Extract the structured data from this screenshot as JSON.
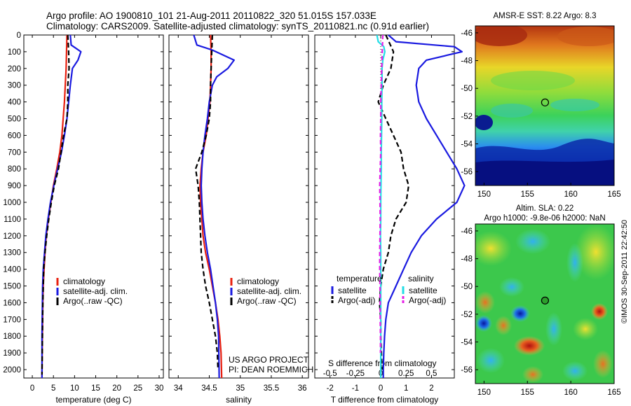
{
  "header": {
    "line1": "Argo profile: AO 1900810_101 21-Aug-2011 20110822_320 51.015S 157.033E",
    "line2": "Climatology: CARS2009. Satellite-adjusted climatology: synTS_20110821.nc (0.91d earlier)"
  },
  "side_label": "©IMOS 30-Sep-2011 22:42:50",
  "colors": {
    "climatology": "#e8200f",
    "satellite": "#1a1ae0",
    "argo": "#000000",
    "salinity_satellite": "#22dde6",
    "salinity_argo": "#e61ee6"
  },
  "chart_data": [
    {
      "type": "line",
      "name_key": "temperature",
      "xlabel": "temperature (deg C)",
      "ylabel": "",
      "xlim": [
        -2,
        31
      ],
      "ylim": [
        2050,
        0
      ],
      "x_ticks": [
        0,
        5,
        10,
        15,
        20,
        25,
        30
      ],
      "y_ticks": [
        0,
        100,
        200,
        300,
        400,
        500,
        600,
        700,
        800,
        900,
        1000,
        1100,
        1200,
        1300,
        1400,
        1500,
        1600,
        1700,
        1800,
        1900,
        2000
      ],
      "legend": [
        "climatology",
        "satellite-adj. clim.",
        "Argo(..raw -QC)"
      ],
      "legend_position": "lower-right",
      "series": [
        {
          "name": "climatology",
          "color_key": "climatology",
          "dash": "",
          "x": [
            8.2,
            8.1,
            8.0,
            7.8,
            7.6,
            7.3,
            7.0,
            6.5,
            5.8,
            5.0,
            4.4,
            3.8,
            3.3,
            3.0,
            2.8,
            2.6,
            2.5,
            2.45,
            2.4,
            2.35,
            2.3
          ],
          "y": [
            0,
            100,
            200,
            300,
            400,
            500,
            600,
            700,
            800,
            900,
            1000,
            1100,
            1200,
            1300,
            1400,
            1500,
            1600,
            1700,
            1800,
            1900,
            2050
          ]
        },
        {
          "name": "satellite-adj. clim.",
          "color_key": "satellite",
          "dash": "",
          "x": [
            9.0,
            9.2,
            11.5,
            10.8,
            9.5,
            9.0,
            8.6,
            8.2,
            7.6,
            6.9,
            6.0,
            5.1,
            4.3,
            3.7,
            3.2,
            2.9,
            2.6,
            2.45,
            2.4,
            2.35,
            2.3,
            2.3
          ],
          "y": [
            0,
            60,
            100,
            150,
            200,
            300,
            400,
            500,
            600,
            700,
            800,
            900,
            1000,
            1100,
            1200,
            1300,
            1400,
            1500,
            1600,
            1700,
            1800,
            2050
          ]
        },
        {
          "name": "Argo(..raw -QC)",
          "color_key": "argo",
          "dash": "7,4",
          "x": [
            8.4,
            8.6,
            8.7,
            8.4,
            8.4,
            8.2,
            7.4,
            6.8,
            6.2,
            5.2,
            4.5,
            3.9,
            3.4,
            3.0,
            2.7,
            2.6,
            2.5,
            2.45,
            2.4,
            2.3
          ],
          "y": [
            0,
            100,
            200,
            300,
            400,
            500,
            600,
            700,
            800,
            900,
            1000,
            1100,
            1200,
            1300,
            1400,
            1500,
            1600,
            1700,
            1800,
            2030
          ]
        }
      ]
    },
    {
      "type": "line",
      "name_key": "salinity",
      "xlabel": "salinity",
      "ylabel": "",
      "xlim": [
        33.85,
        36.1
      ],
      "ylim": [
        2050,
        0
      ],
      "x_ticks": [
        34,
        34.5,
        35,
        35.5,
        36
      ],
      "y_ticks": [
        0,
        100,
        200,
        300,
        400,
        500,
        600,
        700,
        800,
        900,
        1000,
        1100,
        1200,
        1300,
        1400,
        1500,
        1600,
        1700,
        1800,
        1900,
        2000
      ],
      "legend": [
        "climatology",
        "satellite-adj. clim.",
        "Argo(..raw -QC)"
      ],
      "legend_position": "lower-right",
      "annotation": [
        "US ARGO PROJECT",
        "PI: DEAN ROEMMICH"
      ],
      "series": [
        {
          "name": "climatology",
          "color_key": "climatology",
          "dash": "",
          "x": [
            34.52,
            34.53,
            34.53,
            34.52,
            34.51,
            34.48,
            34.45,
            34.4,
            34.37,
            34.35,
            34.36,
            34.38,
            34.4,
            34.44,
            34.5,
            34.55,
            34.6,
            34.64,
            34.67,
            34.69,
            34.7
          ],
          "y": [
            0,
            100,
            200,
            300,
            400,
            500,
            600,
            700,
            800,
            900,
            1000,
            1100,
            1200,
            1300,
            1400,
            1500,
            1600,
            1700,
            1800,
            1900,
            2050
          ]
        },
        {
          "name": "satellite-adj. clim.",
          "color_key": "satellite",
          "dash": "",
          "x": [
            34.25,
            34.3,
            34.55,
            34.9,
            34.8,
            34.62,
            34.55,
            34.5,
            34.47,
            34.43,
            34.4,
            34.38,
            34.37,
            34.38,
            34.4,
            34.43,
            34.47,
            34.52,
            34.56,
            34.6,
            34.63,
            34.65,
            34.66
          ],
          "y": [
            0,
            60,
            90,
            150,
            200,
            250,
            300,
            400,
            500,
            600,
            700,
            800,
            900,
            1000,
            1100,
            1200,
            1300,
            1400,
            1500,
            1600,
            1700,
            1800,
            2050
          ]
        },
        {
          "name": "Argo(..raw -QC)",
          "color_key": "argo",
          "dash": "7,4",
          "x": [
            34.55,
            34.54,
            34.53,
            34.52,
            34.52,
            34.5,
            34.45,
            34.38,
            34.28,
            34.32,
            34.34,
            34.35,
            34.36,
            34.37,
            34.4,
            34.44,
            34.5,
            34.55,
            34.6,
            34.63,
            34.64
          ],
          "y": [
            0,
            100,
            200,
            300,
            400,
            500,
            600,
            700,
            800,
            900,
            1000,
            1100,
            1200,
            1300,
            1400,
            1500,
            1600,
            1700,
            1800,
            1900,
            2000
          ]
        }
      ]
    },
    {
      "type": "line",
      "name_key": "difference",
      "xlabel": "T difference from climatology",
      "ylabel": "",
      "xlim": [
        -2.6,
        2.9
      ],
      "ylim": [
        2050,
        0
      ],
      "x_ticks": [
        -2,
        -1,
        0,
        1,
        2
      ],
      "secondary_x_label": "S difference from climatology",
      "secondary_x_ticks": [
        "-0.5",
        "-0.25",
        "0",
        "0.25",
        "0.5"
      ],
      "secondary_x_values": [
        -0.5,
        -0.25,
        0,
        0.25,
        0.5
      ],
      "secondary_scale": 4,
      "y_ticks": [
        0,
        100,
        200,
        300,
        400,
        500,
        600,
        700,
        800,
        900,
        1000,
        1100,
        1200,
        1300,
        1400,
        1500,
        1600,
        1700,
        1800,
        1900,
        2000
      ],
      "legend_headings": [
        "temperature",
        "salinity"
      ],
      "legend": [
        "satellite",
        "Argo(-adj)",
        "satellite",
        "Argo(-adj)"
      ],
      "legend_position": "lower-center",
      "series": [
        {
          "name": "temperature satellite",
          "color_key": "satellite",
          "dash": "",
          "x": [
            0.3,
            0.6,
            2.9,
            3.2,
            1.8,
            1.5,
            1.4,
            1.5,
            1.8,
            2.2,
            2.6,
            3.0,
            3.3,
            3.0,
            2.2,
            1.6,
            1.2,
            0.9,
            0.6,
            0.3,
            0.2,
            0.15,
            0.12,
            0.1,
            0.1
          ],
          "y": [
            0,
            40,
            70,
            100,
            150,
            200,
            300,
            400,
            500,
            600,
            700,
            800,
            900,
            1000,
            1100,
            1200,
            1300,
            1400,
            1500,
            1600,
            1700,
            1800,
            1900,
            2000,
            2050
          ]
        },
        {
          "name": "temperature Argo(-adj)",
          "color_key": "argo",
          "dash": "7,4",
          "x": [
            0.2,
            0.5,
            0.4,
            0.1,
            -0.1,
            0.2,
            0.5,
            0.8,
            0.9,
            1.1,
            1.0,
            0.6,
            0.4,
            0.3,
            0.1,
            0,
            -0.05,
            0,
            0,
            0.05
          ],
          "y": [
            0,
            100,
            200,
            300,
            400,
            500,
            600,
            700,
            800,
            900,
            1000,
            1100,
            1200,
            1300,
            1400,
            1500,
            1600,
            1700,
            1800,
            2000
          ]
        },
        {
          "name": "salinity satellite",
          "color_key": "salinity_satellite",
          "dash": "",
          "x": [
            -0.15,
            -0.1,
            0.12,
            0.16,
            0.08,
            0.05,
            0.05,
            0.04,
            0.04,
            0.03,
            0.02,
            0.02,
            0.01,
            0,
            0,
            -0.01,
            0,
            0,
            0,
            0,
            0,
            0
          ],
          "y": [
            0,
            40,
            70,
            100,
            150,
            200,
            300,
            400,
            500,
            600,
            700,
            800,
            900,
            1000,
            1100,
            1200,
            1300,
            1400,
            1500,
            1600,
            1700,
            2050
          ]
        },
        {
          "name": "salinity Argo(-adj)",
          "color_key": "salinity_argo",
          "dash": "6,4",
          "x": [
            0.08,
            0.06,
            0.04,
            0.02,
            0,
            0,
            -0.01,
            0,
            -0.02,
            -0.04,
            -0.03,
            -0.02,
            -0.03,
            -0.04,
            -0.04,
            -0.03,
            -0.02,
            -0.02,
            -0.01,
            -0.01
          ],
          "y": [
            0,
            100,
            200,
            300,
            400,
            500,
            600,
            700,
            800,
            900,
            1000,
            1100,
            1200,
            1300,
            1400,
            1500,
            1600,
            1700,
            1800,
            1900
          ]
        }
      ]
    },
    {
      "type": "heatmap",
      "name_key": "sst_map",
      "title": "AMSR-E SST: 8.22 Argo: 8.3",
      "xlim": [
        149,
        165
      ],
      "ylim": [
        -57,
        -45.5
      ],
      "x_ticks": [
        150,
        155,
        160,
        165
      ],
      "y_ticks": [
        -46,
        -48,
        -50,
        -52,
        -54,
        -56
      ],
      "marker": {
        "lon": 157.033,
        "lat": -51.015,
        "fill": "none"
      }
    },
    {
      "type": "heatmap",
      "name_key": "sla_map",
      "title": "Altim. SLA: 0.22",
      "subtitle": "Argo h1000: -9.8e-06 h2000: NaN",
      "xlim": [
        149,
        165
      ],
      "ylim": [
        -57,
        -45.5
      ],
      "x_ticks": [
        150,
        155,
        160,
        165
      ],
      "y_ticks": [
        -46,
        -48,
        -50,
        -52,
        -54,
        -56
      ],
      "marker": {
        "lon": 157.033,
        "lat": -51.015,
        "fill": "#2ca02c"
      }
    }
  ]
}
